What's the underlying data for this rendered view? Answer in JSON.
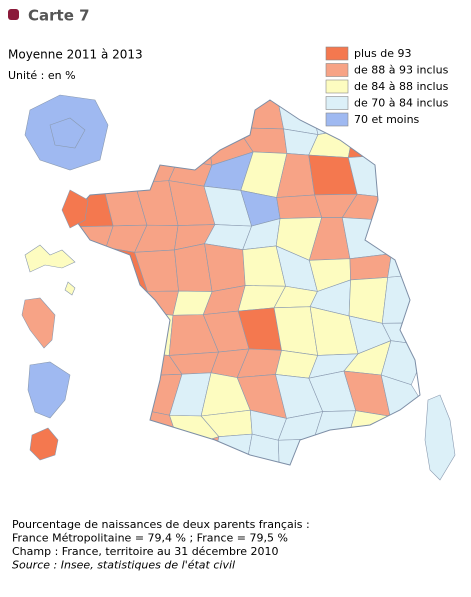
{
  "header": {
    "title": "Carte 7",
    "subtitle": "Moyenne 2011 à 2013",
    "unit": "Unité : en %"
  },
  "legend": {
    "items": [
      {
        "label": "plus de 93",
        "color": "#f4784f"
      },
      {
        "label": "de 88 à 93 inclus",
        "color": "#f7a386"
      },
      {
        "label": "de 84 à 88 inclus",
        "color": "#fdfcc0"
      },
      {
        "label": "de 70 à 84 inclus",
        "color": "#dcf0f8"
      },
      {
        "label": "70 et moins",
        "color": "#9fb9f1"
      }
    ]
  },
  "footer": {
    "lines": [
      "Pourcentage de naissances de deux parents français :",
      "France Métropolitaine = 79,4 % ; France = 79,5 %",
      "Champ : France, territoire au 31 décembre 2010",
      "Source : Insee, statistiques de l'état civil"
    ]
  }
}
